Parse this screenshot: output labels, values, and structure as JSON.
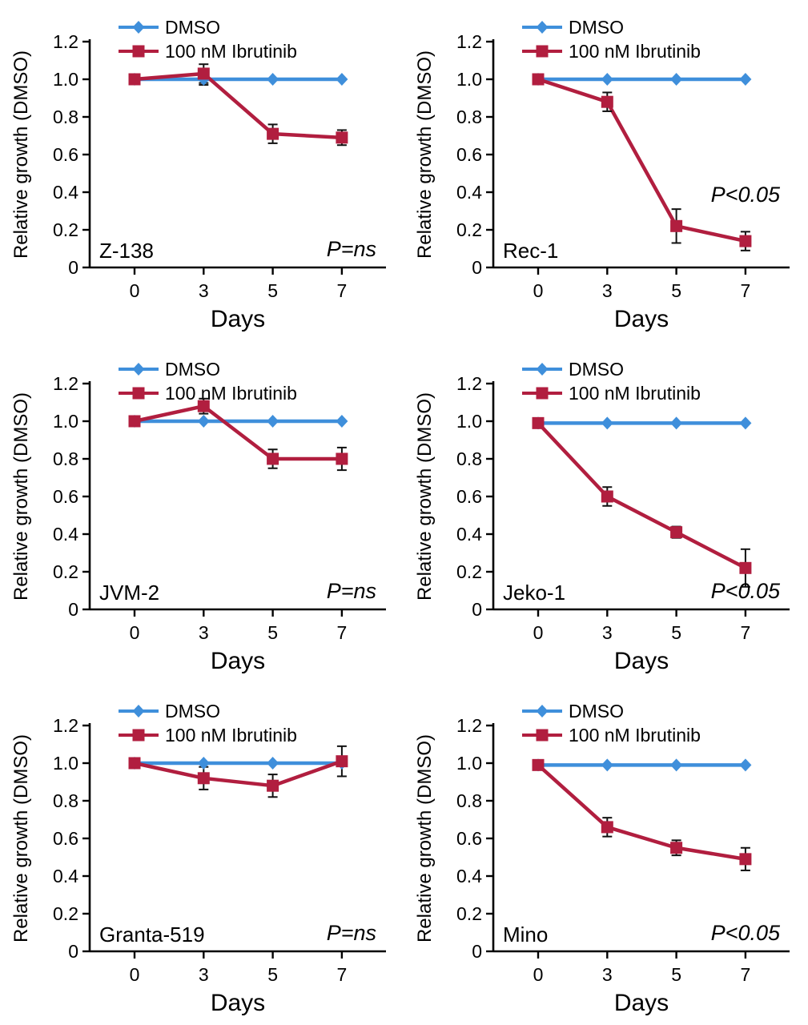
{
  "page": {
    "background": "#ffffff"
  },
  "colors": {
    "dmso": "#3F8FDB",
    "ibrutinib": "#B11E3F",
    "axis": "#000000",
    "error_bar": "#111111"
  },
  "legend": {
    "items": [
      "DMSO",
      "100 nM Ibrutinib"
    ]
  },
  "axes": {
    "ylabel": "Relative growth (DMSO)",
    "xlabel": "Days",
    "ylim": [
      0,
      1.2
    ],
    "yticks": [
      0,
      0.2,
      0.4,
      0.6,
      0.8,
      1.0,
      1.2
    ],
    "ytick_labels": [
      "0",
      "0.2",
      "0.4",
      "0.6",
      "0.8",
      "1.0",
      "1.2"
    ],
    "x_days": [
      0,
      3,
      5,
      7
    ],
    "xtick_labels": [
      "0",
      "3",
      "5",
      "7"
    ],
    "grid": false
  },
  "chart_data": [
    {
      "type": "line",
      "cell_line": "Z-138",
      "p_label": "P=ns",
      "p_pos": "bottom-right",
      "x_days": [
        0,
        3,
        5,
        7
      ],
      "series": [
        {
          "name": "DMSO",
          "marker": "diamond",
          "color_key": "dmso",
          "values": [
            1.0,
            1.0,
            1.0,
            1.0
          ],
          "errors": [
            0,
            0.03,
            0,
            0
          ]
        },
        {
          "name": "100 nM Ibrutinib",
          "marker": "square",
          "color_key": "ibrutinib",
          "values": [
            1.0,
            1.03,
            0.71,
            0.69
          ],
          "errors": [
            0,
            0.05,
            0.05,
            0.04
          ]
        }
      ]
    },
    {
      "type": "line",
      "cell_line": "Rec-1",
      "p_label": "P<0.05",
      "p_pos": "mid-right",
      "x_days": [
        0,
        3,
        5,
        7
      ],
      "series": [
        {
          "name": "DMSO",
          "marker": "diamond",
          "color_key": "dmso",
          "values": [
            1.0,
            1.0,
            1.0,
            1.0
          ],
          "errors": [
            0,
            0,
            0,
            0
          ]
        },
        {
          "name": "100 nM Ibrutinib",
          "marker": "square",
          "color_key": "ibrutinib",
          "values": [
            1.0,
            0.88,
            0.22,
            0.14
          ],
          "errors": [
            0,
            0.05,
            0.09,
            0.05
          ]
        }
      ]
    },
    {
      "type": "line",
      "cell_line": "JVM-2",
      "p_label": "P=ns",
      "p_pos": "bottom-right",
      "x_days": [
        0,
        3,
        5,
        7
      ],
      "series": [
        {
          "name": "DMSO",
          "marker": "diamond",
          "color_key": "dmso",
          "values": [
            1.0,
            1.0,
            1.0,
            1.0
          ],
          "errors": [
            0,
            0,
            0,
            0
          ]
        },
        {
          "name": "100 nM Ibrutinib",
          "marker": "square",
          "color_key": "ibrutinib",
          "values": [
            1.0,
            1.08,
            0.8,
            0.8
          ],
          "errors": [
            0,
            0.04,
            0.05,
            0.06
          ]
        }
      ]
    },
    {
      "type": "line",
      "cell_line": "Jeko-1",
      "p_label": "P<0.05",
      "p_pos": "bottom-right",
      "x_days": [
        0,
        3,
        5,
        7
      ],
      "series": [
        {
          "name": "DMSO",
          "marker": "diamond",
          "color_key": "dmso",
          "values": [
            0.99,
            0.99,
            0.99,
            0.99
          ],
          "errors": [
            0,
            0,
            0,
            0
          ]
        },
        {
          "name": "100 nM Ibrutinib",
          "marker": "square",
          "color_key": "ibrutinib",
          "values": [
            0.99,
            0.6,
            0.41,
            0.22
          ],
          "errors": [
            0,
            0.05,
            0.03,
            0.1
          ]
        }
      ]
    },
    {
      "type": "line",
      "cell_line": "Granta-519",
      "p_label": "P=ns",
      "p_pos": "bottom-right",
      "x_days": [
        0,
        3,
        5,
        7
      ],
      "series": [
        {
          "name": "DMSO",
          "marker": "diamond",
          "color_key": "dmso",
          "values": [
            1.0,
            1.0,
            1.0,
            1.0
          ],
          "errors": [
            0,
            0,
            0,
            0
          ]
        },
        {
          "name": "100 nM Ibrutinib",
          "marker": "square",
          "color_key": "ibrutinib",
          "values": [
            1.0,
            0.92,
            0.88,
            1.01
          ],
          "errors": [
            0,
            0.06,
            0.06,
            0.08
          ]
        }
      ]
    },
    {
      "type": "line",
      "cell_line": "Mino",
      "p_label": "P<0.05",
      "p_pos": "bottom-right",
      "x_days": [
        0,
        3,
        5,
        7
      ],
      "series": [
        {
          "name": "DMSO",
          "marker": "diamond",
          "color_key": "dmso",
          "values": [
            0.99,
            0.99,
            0.99,
            0.99
          ],
          "errors": [
            0,
            0,
            0,
            0
          ]
        },
        {
          "name": "100 nM Ibrutinib",
          "marker": "square",
          "color_key": "ibrutinib",
          "values": [
            0.99,
            0.66,
            0.55,
            0.49
          ],
          "errors": [
            0,
            0.05,
            0.04,
            0.06
          ]
        }
      ]
    }
  ]
}
